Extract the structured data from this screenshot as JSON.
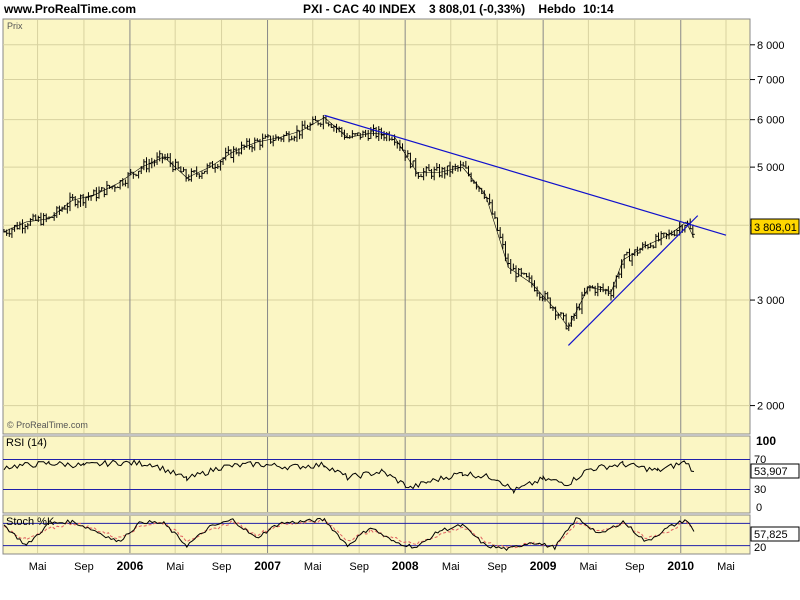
{
  "header": {
    "site": "www.ProRealTime.com",
    "title": "PXI - CAC 40 INDEX    3 808,01 (-0,33%)    Hebdo",
    "time": "10:14"
  },
  "main_panel": {
    "label": "Prix",
    "watermark": "© ProRealTime.com",
    "last_value_label": "3 808,01"
  },
  "rsi_panel": {
    "label": "RSI (14)",
    "value_label": "53,907",
    "level_high": "70",
    "level_low": "30",
    "scale_top": "100",
    "scale_bottom": "0"
  },
  "stoch_panel": {
    "label": "Stoch %K",
    "value_label": "57,825",
    "level_low": "20"
  },
  "colors": {
    "panel_bg": "#FBF6C4",
    "trendline": "#1010CC",
    "price": "#000000",
    "stoch_d": "#E06060",
    "last_box": "#FFD700"
  },
  "chart_data": {
    "type": "line",
    "title": "PXI - CAC 40 INDEX",
    "y_scale": "log",
    "ylim": [
      1800,
      8800
    ],
    "y_ticks": [
      2000,
      3000,
      4000,
      5000,
      6000,
      7000,
      8000
    ],
    "y_tick_labels": [
      "2 000",
      "3 000",
      "4 000",
      "5 000",
      "6 000",
      "7 000",
      "8 000"
    ],
    "x_range": [
      "2005-02-01",
      "2010-07-01"
    ],
    "x_ticks": [
      {
        "date": "2005-05-01",
        "label": "Mai",
        "major": false
      },
      {
        "date": "2005-09-01",
        "label": "Sep",
        "major": false
      },
      {
        "date": "2006-01-01",
        "label": "2006",
        "major": true
      },
      {
        "date": "2006-05-01",
        "label": "Mai",
        "major": false
      },
      {
        "date": "2006-09-01",
        "label": "Sep",
        "major": false
      },
      {
        "date": "2007-01-01",
        "label": "2007",
        "major": true
      },
      {
        "date": "2007-05-01",
        "label": "Mai",
        "major": false
      },
      {
        "date": "2007-09-01",
        "label": "Sep",
        "major": false
      },
      {
        "date": "2008-01-01",
        "label": "2008",
        "major": true
      },
      {
        "date": "2008-05-01",
        "label": "Mai",
        "major": false
      },
      {
        "date": "2008-09-01",
        "label": "Sep",
        "major": false
      },
      {
        "date": "2009-01-01",
        "label": "2009",
        "major": true
      },
      {
        "date": "2009-05-01",
        "label": "Mai",
        "major": false
      },
      {
        "date": "2009-09-01",
        "label": "Sep",
        "major": false
      },
      {
        "date": "2010-01-01",
        "label": "2010",
        "major": true
      },
      {
        "date": "2010-05-01",
        "label": "Mai",
        "major": false
      }
    ],
    "series": [
      {
        "x": [
          "2005-02-01",
          "2005-04-01",
          "2005-06-01",
          "2005-08-01",
          "2005-10-01",
          "2005-12-01",
          "2006-02-01",
          "2006-04-01",
          "2006-06-01",
          "2006-08-01",
          "2006-10-01",
          "2006-12-01",
          "2007-02-01",
          "2007-04-01",
          "2007-06-01",
          "2007-08-01",
          "2007-10-01",
          "2007-12-01",
          "2008-02-01",
          "2008-04-01",
          "2008-06-01",
          "2008-08-01",
          "2008-10-01",
          "2008-12-01",
          "2009-02-01",
          "2009-03-09",
          "2009-05-01",
          "2009-07-01",
          "2009-08-01",
          "2009-10-01",
          "2009-12-01",
          "2010-01-15",
          "2010-02-05"
        ],
        "values": [
          3900,
          4050,
          4100,
          4400,
          4500,
          4700,
          5000,
          5200,
          4800,
          5000,
          5300,
          5500,
          5600,
          5750,
          6050,
          5600,
          5700,
          5650,
          4900,
          4900,
          5000,
          4500,
          3400,
          3200,
          2900,
          2700,
          3150,
          3100,
          3500,
          3700,
          3850,
          4050,
          3808
        ]
      }
    ],
    "trendlines": [
      {
        "from": {
          "x": "2007-06-01",
          "y": 6100
        },
        "to": {
          "x": "2010-05-01",
          "y": 3850
        }
      },
      {
        "from": {
          "x": "2009-03-09",
          "y": 2520
        },
        "to": {
          "x": "2010-02-15",
          "y": 4150
        }
      }
    ],
    "rsi": {
      "ylim": [
        0,
        100
      ],
      "levels": [
        30,
        70
      ],
      "x": [
        "2005-02-01",
        "2005-06-01",
        "2005-09-01",
        "2005-12-01",
        "2006-03-01",
        "2006-06-01",
        "2006-09-01",
        "2006-12-01",
        "2007-03-01",
        "2007-06-01",
        "2007-08-01",
        "2007-11-01",
        "2008-01-15",
        "2008-03-01",
        "2008-06-01",
        "2008-09-01",
        "2008-10-15",
        "2009-01-01",
        "2009-03-09",
        "2009-05-01",
        "2009-08-01",
        "2009-11-01",
        "2010-01-15",
        "2010-02-05"
      ],
      "values": [
        60,
        65,
        62,
        66,
        64,
        44,
        60,
        64,
        60,
        63,
        46,
        54,
        32,
        40,
        52,
        45,
        28,
        44,
        38,
        57,
        64,
        55,
        67,
        54
      ]
    },
    "stochastic": {
      "ylim": [
        0,
        100
      ],
      "levels": [
        20,
        80
      ],
      "x": [
        "2005-02-01",
        "2005-04-01",
        "2005-06-01",
        "2005-08-01",
        "2005-10-01",
        "2005-12-01",
        "2006-02-01",
        "2006-04-01",
        "2006-06-01",
        "2006-08-01",
        "2006-10-01",
        "2006-12-01",
        "2007-02-01",
        "2007-04-01",
        "2007-06-01",
        "2007-08-01",
        "2007-10-01",
        "2007-12-01",
        "2008-02-01",
        "2008-04-01",
        "2008-06-01",
        "2008-08-01",
        "2008-10-01",
        "2008-12-01",
        "2009-02-01",
        "2009-04-01",
        "2009-06-01",
        "2009-08-01",
        "2009-10-01",
        "2009-12-01",
        "2010-01-15",
        "2010-02-05"
      ],
      "k": [
        75,
        20,
        80,
        85,
        60,
        30,
        85,
        80,
        20,
        70,
        90,
        40,
        80,
        85,
        90,
        20,
        70,
        30,
        15,
        60,
        75,
        20,
        10,
        30,
        15,
        95,
        50,
        85,
        30,
        70,
        90,
        58
      ],
      "d": [
        70,
        35,
        65,
        82,
        65,
        40,
        75,
        82,
        35,
        60,
        85,
        50,
        75,
        83,
        87,
        35,
        60,
        40,
        25,
        50,
        70,
        30,
        15,
        25,
        20,
        80,
        60,
        80,
        40,
        60,
        85,
        70
      ]
    }
  }
}
